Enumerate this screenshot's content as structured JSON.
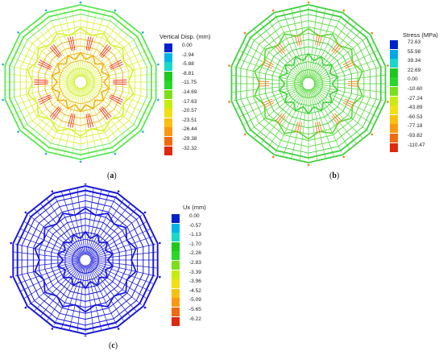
{
  "panels": [
    {
      "id": "a",
      "caption": "a",
      "legend_title": "Vertical Disp. (mm)",
      "legend_values": [
        "0.00",
        "-2.94",
        "-5.88",
        "-8.81",
        "-11.75",
        "-14.69",
        "-17.63",
        "-20.57",
        "-23.51",
        "-26.44",
        "-29.38",
        "-32.32"
      ],
      "legend_colors": [
        "#0022cc",
        "#00b4e6",
        "#18d8c8",
        "#1ec81e",
        "#28d828",
        "#7ae01a",
        "#c8ec10",
        "#f0e014",
        "#f8c010",
        "#f89a10",
        "#f06a10",
        "#e02810"
      ],
      "structure_colors": {
        "outer": "#58e858",
        "mid": "#d8f030",
        "inner": "#f0b020",
        "hot": "#e83018",
        "center": "#c8ee30"
      }
    },
    {
      "id": "b",
      "caption": "b",
      "legend_title": "Stress (MPa)",
      "legend_values": [
        "72.63",
        "55.98",
        "39.34",
        "22.69",
        "0.00",
        "-10.60",
        "-27.24",
        "-43.89",
        "-60.53",
        "-77.18",
        "-93.82",
        "-110.47"
      ],
      "legend_colors": [
        "#0022cc",
        "#00a8e8",
        "#18d8c8",
        "#1ec81e",
        "#28d828",
        "#7ae01a",
        "#c8ec10",
        "#f0e014",
        "#f8c010",
        "#f89a10",
        "#f06a10",
        "#e02810"
      ],
      "structure_colors": {
        "outer": "#40d040",
        "mid": "#58d838",
        "inner": "#40d040",
        "hot": "#f08020",
        "center": "#50d040"
      }
    },
    {
      "id": "c",
      "caption": "c",
      "legend_title": "Ux (mm)",
      "legend_values": [
        "0.00",
        "-0.57",
        "-1.13",
        "-1.70",
        "-2.26",
        "-2.83",
        "-3.39",
        "-3.96",
        "-4.52",
        "-5.09",
        "-5.65",
        "-6.22"
      ],
      "legend_colors": [
        "#0022cc",
        "#00b4e6",
        "#18d8c8",
        "#1ec81e",
        "#28d828",
        "#7ae01a",
        "#c8ec10",
        "#f0e014",
        "#f8c010",
        "#f89a10",
        "#f06a10",
        "#e02810"
      ],
      "structure_colors": {
        "outer": "#1a1ad8",
        "mid": "#1a1ad8",
        "inner": "#1a1ad8",
        "hot": "#1a1ad8",
        "center": "#1a1ad8"
      }
    }
  ]
}
